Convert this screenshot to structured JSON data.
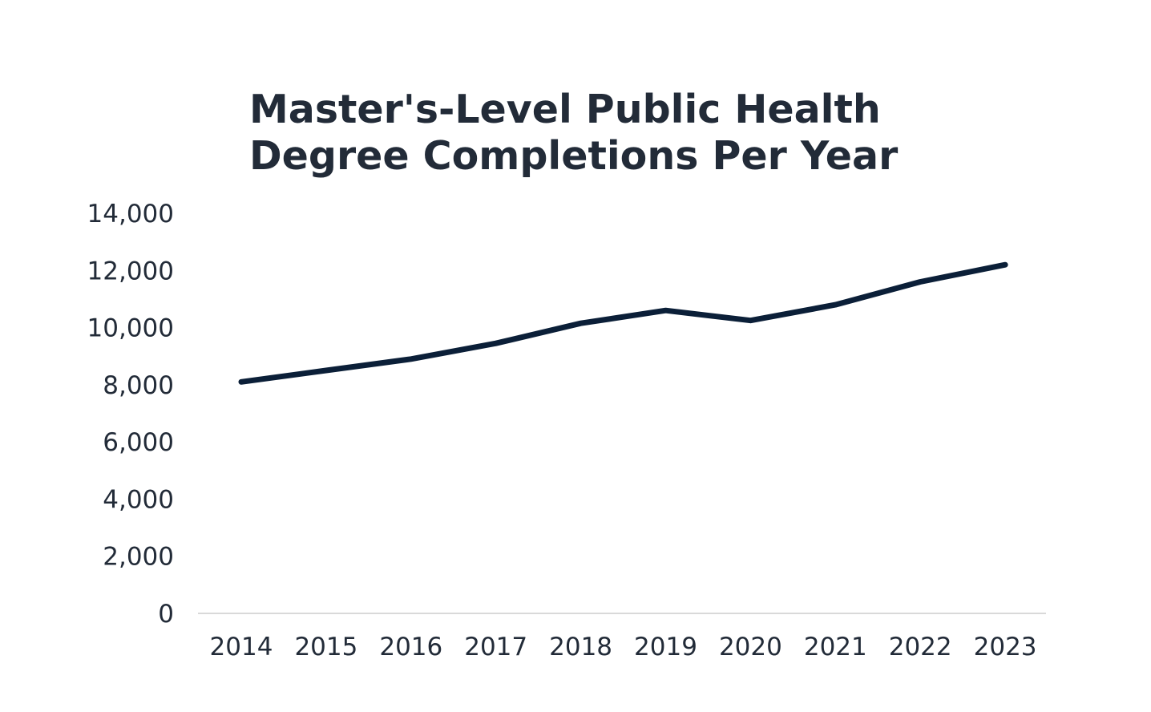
{
  "chart_data": {
    "type": "line",
    "title_lines": [
      "Master's-Level Public Health",
      "Degree Completions Per Year"
    ],
    "xlabel": "",
    "ylabel": "",
    "x": [
      "2014",
      "2015",
      "2016",
      "2017",
      "2018",
      "2019",
      "2020",
      "2021",
      "2022",
      "2023"
    ],
    "series": [
      {
        "values": [
          8100,
          8500,
          8900,
          9450,
          10150,
          10600,
          10250,
          10800,
          11600,
          12200
        ],
        "color": "#0b1f38"
      }
    ],
    "ylim": [
      0,
      14000
    ],
    "yticks": [
      0,
      2000,
      4000,
      6000,
      8000,
      10000,
      12000,
      14000
    ],
    "ytick_labels": [
      "0",
      "2,000",
      "4,000",
      "6,000",
      "8,000",
      "10,000",
      "12,000",
      "14,000"
    ],
    "grid": false,
    "legend": "none",
    "axis_line_color": "#d9d9d9",
    "text_color": "#222b38"
  }
}
